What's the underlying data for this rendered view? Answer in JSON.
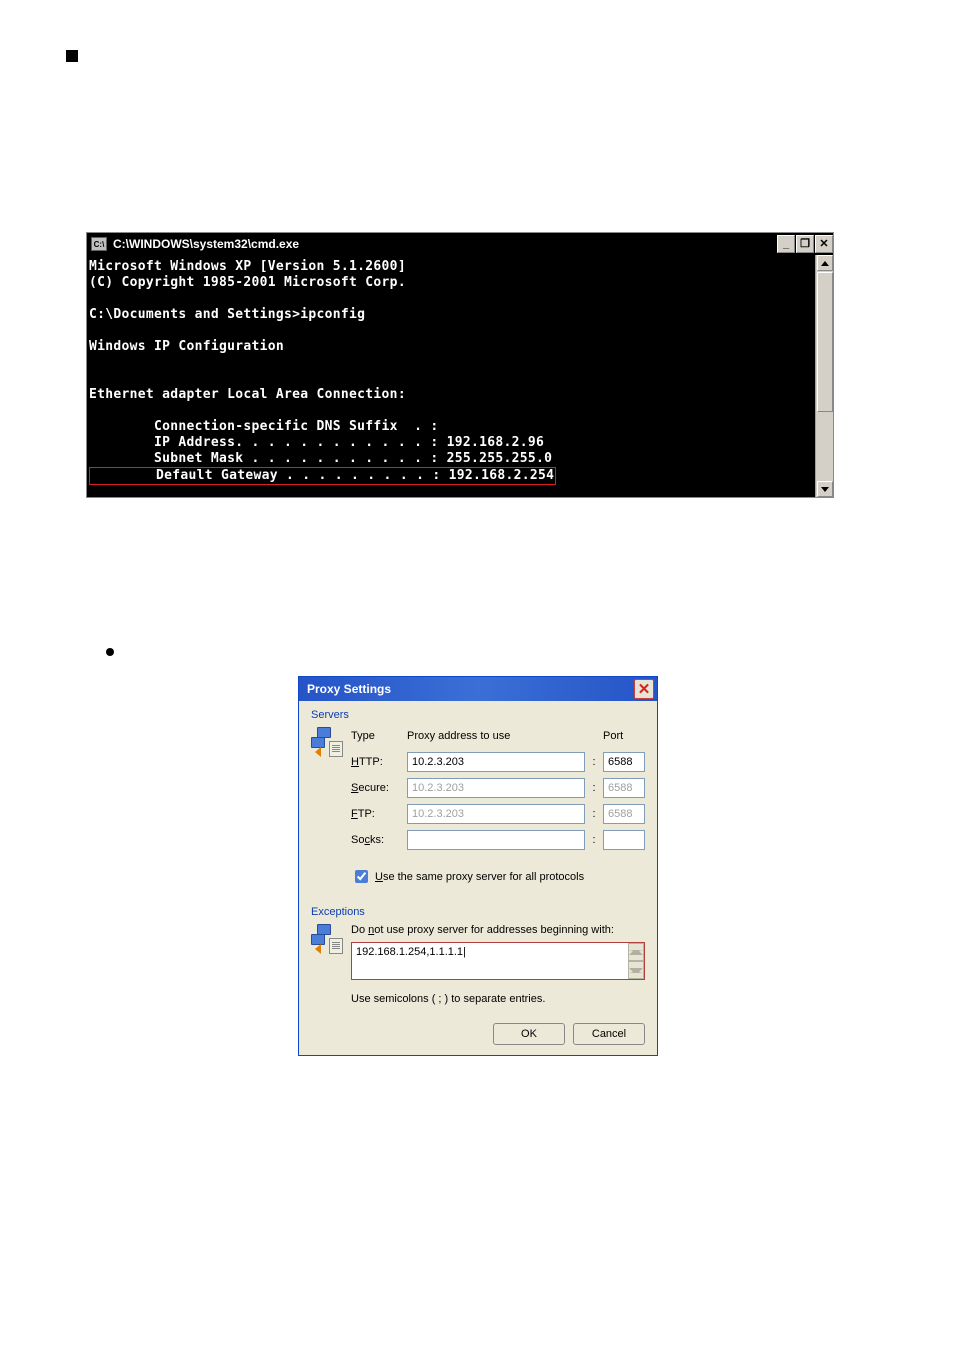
{
  "cmd": {
    "title": "C:\\WINDOWS\\system32\\cmd.exe",
    "icon_text": "C:\\",
    "lines": {
      "l1": "Microsoft Windows XP [Version 5.1.2600]",
      "l2": "(C) Copyright 1985-2001 Microsoft Corp.",
      "l3": "C:\\Documents and Settings>ipconfig",
      "l4": "Windows IP Configuration",
      "l5": "Ethernet adapter Local Area Connection:",
      "l6": "        Connection-specific DNS Suffix  . :",
      "l7": "        IP Address. . . . . . . . . . . . : 192.168.2.96",
      "l8": "        Subnet Mask . . . . . . . . . . . : 255.255.255.0",
      "l9": "        Default Gateway . . . . . . . . . : 192.168.2.254"
    },
    "buttons": {
      "min": "_",
      "max": "❐",
      "close": "✕"
    }
  },
  "proxy": {
    "title": "Proxy Settings",
    "servers_label": "Servers",
    "headers": {
      "type": "Type",
      "addr": "Proxy address to use",
      "port": "Port"
    },
    "rows": {
      "http": {
        "label_pre": "",
        "label_u": "H",
        "label_post": "TTP:",
        "addr": "10.2.3.203",
        "port": "6588",
        "enabled": true
      },
      "secure": {
        "label_pre": "",
        "label_u": "S",
        "label_post": "ecure:",
        "addr": "10.2.3.203",
        "port": "6588",
        "enabled": false
      },
      "ftp": {
        "label_pre": "",
        "label_u": "F",
        "label_post": "TP:",
        "addr": "10.2.3.203",
        "port": "6588",
        "enabled": false
      },
      "socks": {
        "label_pre": "So",
        "label_u": "c",
        "label_post": "ks:",
        "addr": "",
        "port": "",
        "enabled": true
      }
    },
    "same_proxy_checked": true,
    "same_proxy_pre": "",
    "same_proxy_u": "U",
    "same_proxy_post": "se the same proxy server for all protocols",
    "exceptions_label": "Exceptions",
    "exceptions_pre": "Do ",
    "exceptions_u": "n",
    "exceptions_post": "ot use proxy server for addresses beginning with:",
    "exceptions_value": "192.168.1.254,1.1.1.1|",
    "semicolons_note": "Use semicolons ( ; ) to separate entries.",
    "ok": "OK",
    "cancel": "Cancel"
  }
}
